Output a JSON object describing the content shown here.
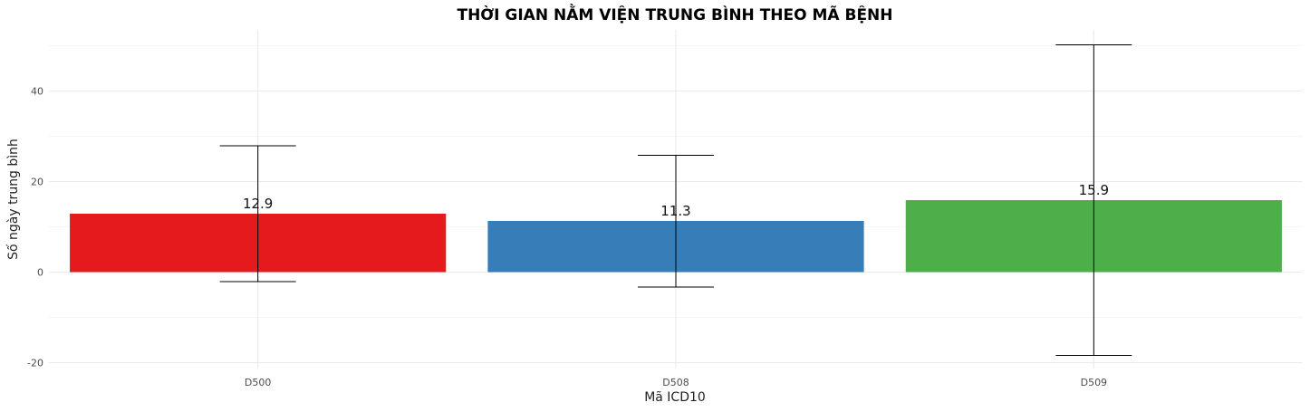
{
  "chart_data": {
    "type": "bar",
    "title": "THỜI GIAN NẰM VIỆN TRUNG BÌNH THEO MÃ BỆNH",
    "xlabel": "Mã ICD10",
    "ylabel": "Số ngày trung bình",
    "categories": [
      "D500",
      "D508",
      "D509"
    ],
    "values": [
      12.9,
      11.3,
      15.9
    ],
    "value_labels": [
      "12.9",
      "11.3",
      "15.9"
    ],
    "error_low": [
      -2.1,
      -3.3,
      -18.4
    ],
    "error_high": [
      27.9,
      25.8,
      50.2
    ],
    "colors": [
      "#e41a1c",
      "#377eb8",
      "#4daf4a"
    ],
    "ylim": [
      -22,
      53
    ],
    "yticks": [
      -20,
      0,
      20,
      40
    ],
    "ytick_labels": [
      "-20",
      "0",
      "20",
      "40"
    ],
    "grid": true,
    "legend": "none"
  }
}
